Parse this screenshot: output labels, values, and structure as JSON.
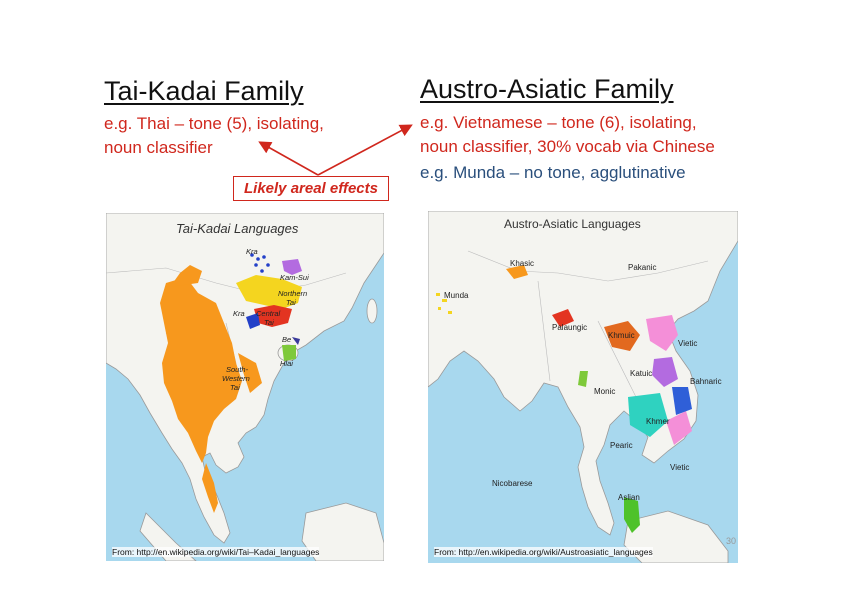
{
  "left": {
    "heading": "Tai-Kadai Family",
    "line1": "e.g. Thai – tone (5), isolating,",
    "line2": "noun classifier"
  },
  "right": {
    "heading": "Austro-Asiatic Family",
    "line1": "e.g. Vietnamese – tone (6), isolating,",
    "line2": "noun classifier, 30% vocab via Chinese",
    "line3": "e.g. Munda – no tone, agglutinative"
  },
  "callout": "Likely areal effects",
  "map_left": {
    "title": "Tai-Kadai Languages",
    "labels": {
      "kra_top": "Kra",
      "kam_sui": "Kam-Sui",
      "northern_tai_1": "Northern",
      "northern_tai_2": "Tai",
      "kra_mid": "Kra",
      "central_tai_1": "Central",
      "central_tai_2": "Tai",
      "be": "Be",
      "hlai": "Hlai",
      "sw_tai_1": "South-",
      "sw_tai_2": "Western",
      "sw_tai_3": "Tai"
    },
    "source": "From: http://en.wikipedia.org/wiki/Tai–Kadai_languages"
  },
  "map_right": {
    "title": "Austro-Asiatic Languages",
    "labels": {
      "khasic": "Khasic",
      "pakanic": "Pakanic",
      "munda": "Munda",
      "palaungic": "Palaungic",
      "khmuic": "Khmuic",
      "vietic_top": "Vietic",
      "katuic": "Katuic",
      "bahnaric": "Bahnaric",
      "monic": "Monic",
      "khmer": "Khmer",
      "pearic": "Pearic",
      "vietic_bottom": "Vietic",
      "nicobarese": "Nicobarese",
      "aslian": "Aslian"
    },
    "source": "From: http://en.wikipedia.org/wiki/Austroasiatic_languages"
  },
  "page_number": "30",
  "colors": {
    "heading_text": "#111111",
    "example_red": "#d0271d",
    "example_blue": "#2a4f7c",
    "sea": "#a8d8ee",
    "land": "#f4f4f0"
  }
}
